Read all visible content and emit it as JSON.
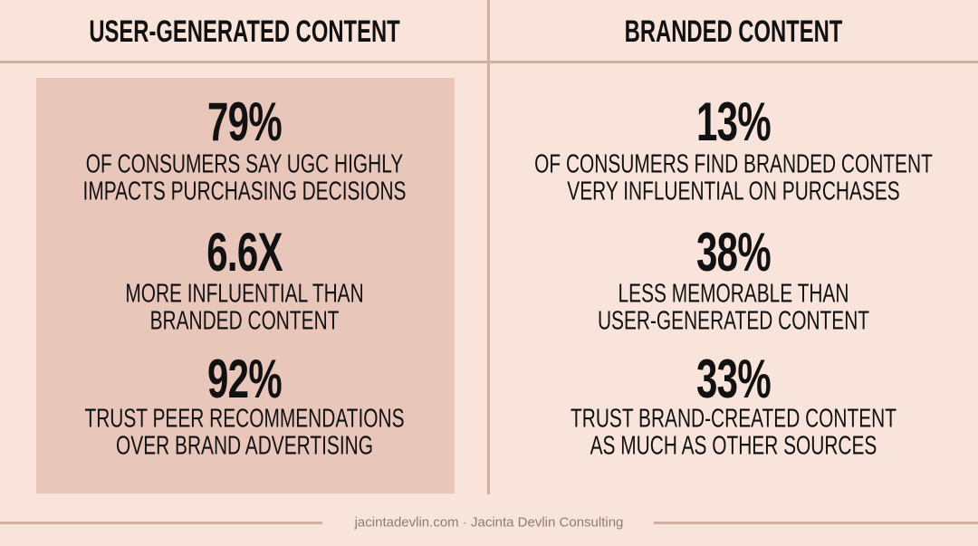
{
  "columns": [
    {
      "heading": "USER-GENERATED CONTENT",
      "stats": [
        {
          "value": "79%",
          "lines": [
            "OF CONSUMERS SAY UGC HIGHLY",
            "IMPACTS PURCHASING DECISIONS"
          ]
        },
        {
          "value": "6.6X",
          "lines": [
            "MORE INFLUENTIAL THAN",
            "BRANDED CONTENT"
          ]
        },
        {
          "value": "92%",
          "lines": [
            "TRUST PEER RECOMMENDATIONS",
            "OVER BRAND ADVERTISING"
          ]
        }
      ]
    },
    {
      "heading": "BRANDED CONTENT",
      "stats": [
        {
          "value": "13%",
          "lines": [
            "OF CONSUMERS FIND BRANDED CONTENT",
            "VERY INFLUENTIAL ON PURCHASES"
          ]
        },
        {
          "value": "38%",
          "lines": [
            "LESS MEMORABLE THAN",
            "USER-GENERATED CONTENT"
          ]
        },
        {
          "value": "33%",
          "lines": [
            "TRUST BRAND-CREATED CONTENT",
            "AS MUCH AS OTHER SOURCES"
          ]
        }
      ]
    }
  ],
  "footer": "jacintadevlin.com · Jacinta Devlin Consulting"
}
